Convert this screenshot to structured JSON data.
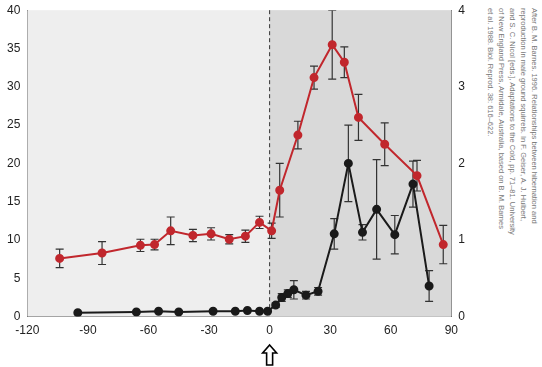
{
  "chart_data": {
    "type": "line",
    "xlim": [
      -120,
      90
    ],
    "xticks": [
      -120,
      -90,
      -60,
      -30,
      0,
      30,
      60,
      90
    ],
    "ylim": [
      0,
      40
    ],
    "yticks": [
      0,
      5,
      10,
      15,
      20,
      25,
      30,
      35,
      40
    ],
    "y2lim": [
      0,
      4
    ],
    "y2ticks": [
      0,
      1,
      2,
      3,
      4
    ],
    "grid": false,
    "marker": "circle",
    "shaded_x": [
      0,
      90
    ],
    "reference_x": 0,
    "series": [
      {
        "color": "#c1272d",
        "axis": "y",
        "x": [
          -104,
          -83,
          -64,
          -57,
          -49,
          -38,
          -29,
          -20,
          -12,
          -5,
          1,
          5,
          14,
          22,
          31,
          37,
          44,
          57,
          73,
          86
        ],
        "values": [
          7.6,
          8.3,
          9.3,
          9.4,
          11.2,
          10.6,
          10.8,
          10.1,
          10.5,
          12.3,
          11.2,
          16.5,
          23.7,
          31.2,
          35.5,
          33.2,
          26,
          22.5,
          18.4,
          9.4
        ],
        "errors": [
          1.2,
          1.5,
          0.8,
          0.7,
          1.8,
          0.8,
          0.8,
          0.6,
          0.8,
          0.8,
          1,
          3.5,
          1.8,
          1.5,
          4.5,
          2,
          3,
          2.8,
          2,
          2.5
        ]
      },
      {
        "color": "#1a1a1a",
        "axis": "y2",
        "x": [
          -95,
          -66,
          -55,
          -45,
          -28,
          -17,
          -11,
          -5,
          -1,
          3,
          6,
          9,
          12,
          18,
          24,
          32,
          39,
          46,
          53,
          62,
          71,
          79
        ],
        "values": [
          0.05,
          0.06,
          0.07,
          0.06,
          0.07,
          0.07,
          0.08,
          0.07,
          0.07,
          0.15,
          0.25,
          0.3,
          0.35,
          0.28,
          0.33,
          1.08,
          2.0,
          1.1,
          1.4,
          1.07,
          1.73,
          0.4
        ],
        "errors": [
          0,
          0,
          0,
          0,
          0,
          0,
          0,
          0,
          0,
          0.03,
          0.05,
          0.05,
          0.12,
          0.05,
          0.05,
          0.2,
          0.5,
          0.1,
          0.65,
          0.25,
          0.3,
          0.2
        ]
      }
    ],
    "source": [
      "After B. M. Barnes. 1996. Relationships between hibernation and",
      "reproduction in male ground squirrels. In F. Geiser, A. J. Hulbert,",
      "and S. C. Nicol [eds.], Adaptations to the Cold, pp. 71–81. University",
      "of New England Press, Armidale, Australia, based on B. M. Barnes",
      "et al. 1988. Biol. Reprod. 38: 616–622."
    ]
  }
}
